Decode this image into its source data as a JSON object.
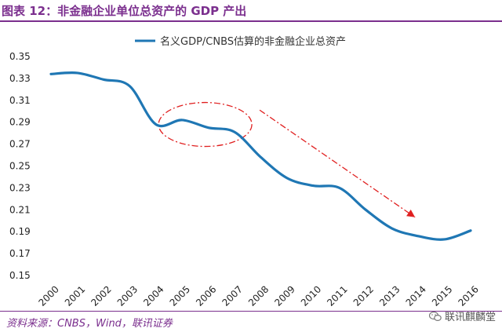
{
  "header": {
    "title": "图表 12：非金融企业单位总资产的 GDP 产出"
  },
  "footer": {
    "source": "资料来源：CNBS，Wind，联讯证券",
    "watermark": "联讯麒麟堂",
    "watermark_icon": "wechat-icon"
  },
  "colors": {
    "title": "#7b2f8e",
    "series": "#1f77b4",
    "annotation": "#e02020"
  },
  "chart_data": {
    "type": "line",
    "title": "",
    "xlabel": "",
    "ylabel": "",
    "legend": {
      "position": "top",
      "entries": [
        "名义GDP/CNBS估算的非金融企业总资产"
      ]
    },
    "x": [
      "2000",
      "2001",
      "2002",
      "2003",
      "2004",
      "2005",
      "2006",
      "2007",
      "2008",
      "2009",
      "2010",
      "2011",
      "2012",
      "2013",
      "2014",
      "2015",
      "2016"
    ],
    "series": [
      {
        "name": "名义GDP/CNBS估算的非金融企业总资产",
        "values": [
          0.334,
          0.335,
          0.329,
          0.323,
          0.288,
          0.292,
          0.285,
          0.281,
          0.258,
          0.239,
          0.232,
          0.23,
          0.21,
          0.193,
          0.186,
          0.183,
          0.191
        ]
      }
    ],
    "yticks": [
      "0.15",
      "0.17",
      "0.19",
      "0.21",
      "0.23",
      "0.25",
      "0.27",
      "0.29",
      "0.31",
      "0.33",
      "0.35"
    ],
    "ylim": [
      0.15,
      0.35
    ],
    "grid": false,
    "annotations": [
      {
        "type": "ellipse",
        "style": "dash-dot",
        "around_years": [
          "2005",
          "2007"
        ]
      },
      {
        "type": "arrow",
        "style": "dash-dot",
        "from_year": "2007",
        "to_year": "2014"
      }
    ]
  }
}
